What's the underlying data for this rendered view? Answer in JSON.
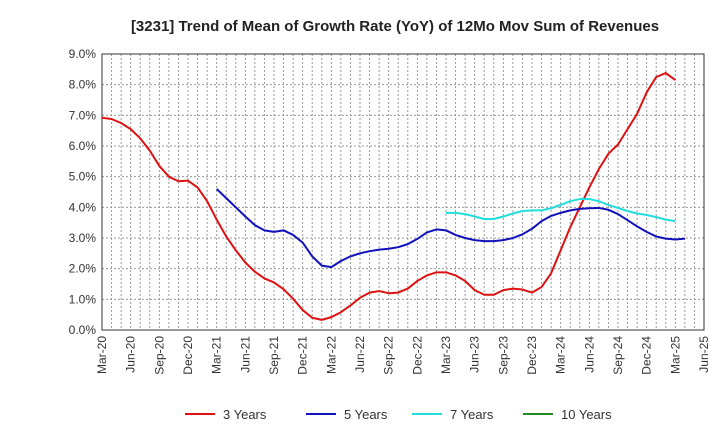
{
  "chart_data": {
    "type": "line",
    "title": "[3231]  Trend of Mean of Growth Rate (YoY) of 12Mo Mov Sum of Revenues",
    "xlabel": "",
    "ylabel": "",
    "ylim": [
      0,
      9
    ],
    "y_ticks": [
      "0.0%",
      "1.0%",
      "2.0%",
      "3.0%",
      "4.0%",
      "5.0%",
      "6.0%",
      "7.0%",
      "8.0%",
      "9.0%"
    ],
    "x_ticks": [
      "Mar-20",
      "Jun-20",
      "Sep-20",
      "Dec-20",
      "Mar-21",
      "Jun-21",
      "Sep-21",
      "Dec-21",
      "Mar-22",
      "Jun-22",
      "Sep-22",
      "Dec-22",
      "Mar-23",
      "Jun-23",
      "Sep-23",
      "Dec-23",
      "Mar-24",
      "Jun-24",
      "Sep-24",
      "Dec-24",
      "Mar-25",
      "Jun-25"
    ],
    "x_start": "Mar-20",
    "x_months_total": 63,
    "series": [
      {
        "name": "3 Years",
        "color": "#dd1111",
        "start_index": 0,
        "values": [
          6.92,
          6.88,
          6.75,
          6.55,
          6.25,
          5.85,
          5.35,
          5.0,
          4.85,
          4.87,
          4.65,
          4.2,
          3.6,
          3.05,
          2.6,
          2.2,
          1.9,
          1.68,
          1.55,
          1.33,
          1.02,
          0.65,
          0.4,
          0.33,
          0.42,
          0.58,
          0.8,
          1.05,
          1.22,
          1.27,
          1.2,
          1.22,
          1.35,
          1.6,
          1.78,
          1.88,
          1.88,
          1.78,
          1.6,
          1.3,
          1.15,
          1.15,
          1.3,
          1.35,
          1.32,
          1.22,
          1.4,
          1.85,
          2.6,
          3.35,
          4.0,
          4.65,
          5.25,
          5.75,
          6.05,
          6.55,
          7.05,
          7.75,
          8.25,
          8.38,
          8.15
        ]
      },
      {
        "name": "5 Years",
        "color": "#1111bb",
        "start_index": 12,
        "values": [
          4.6,
          4.3,
          4.0,
          3.7,
          3.42,
          3.25,
          3.2,
          3.25,
          3.1,
          2.85,
          2.4,
          2.1,
          2.05,
          2.25,
          2.4,
          2.5,
          2.57,
          2.62,
          2.65,
          2.7,
          2.8,
          2.97,
          3.18,
          3.28,
          3.25,
          3.1,
          3.0,
          2.93,
          2.9,
          2.9,
          2.93,
          3.0,
          3.12,
          3.3,
          3.55,
          3.72,
          3.82,
          3.9,
          3.95,
          3.97,
          3.98,
          3.92,
          3.78,
          3.58,
          3.38,
          3.2,
          3.05,
          2.98,
          2.95,
          2.98
        ]
      },
      {
        "name": "7 Years",
        "color": "#22dddd",
        "start_index": 36,
        "values": [
          3.82,
          3.82,
          3.78,
          3.7,
          3.62,
          3.62,
          3.7,
          3.8,
          3.88,
          3.9,
          3.9,
          3.97,
          4.08,
          4.2,
          4.27,
          4.27,
          4.2,
          4.08,
          3.98,
          3.88,
          3.8,
          3.75,
          3.68,
          3.6,
          3.55
        ]
      },
      {
        "name": "10 Years",
        "color": "#228822",
        "start_index": 0,
        "values": []
      }
    ],
    "legend_position": "bottom"
  }
}
